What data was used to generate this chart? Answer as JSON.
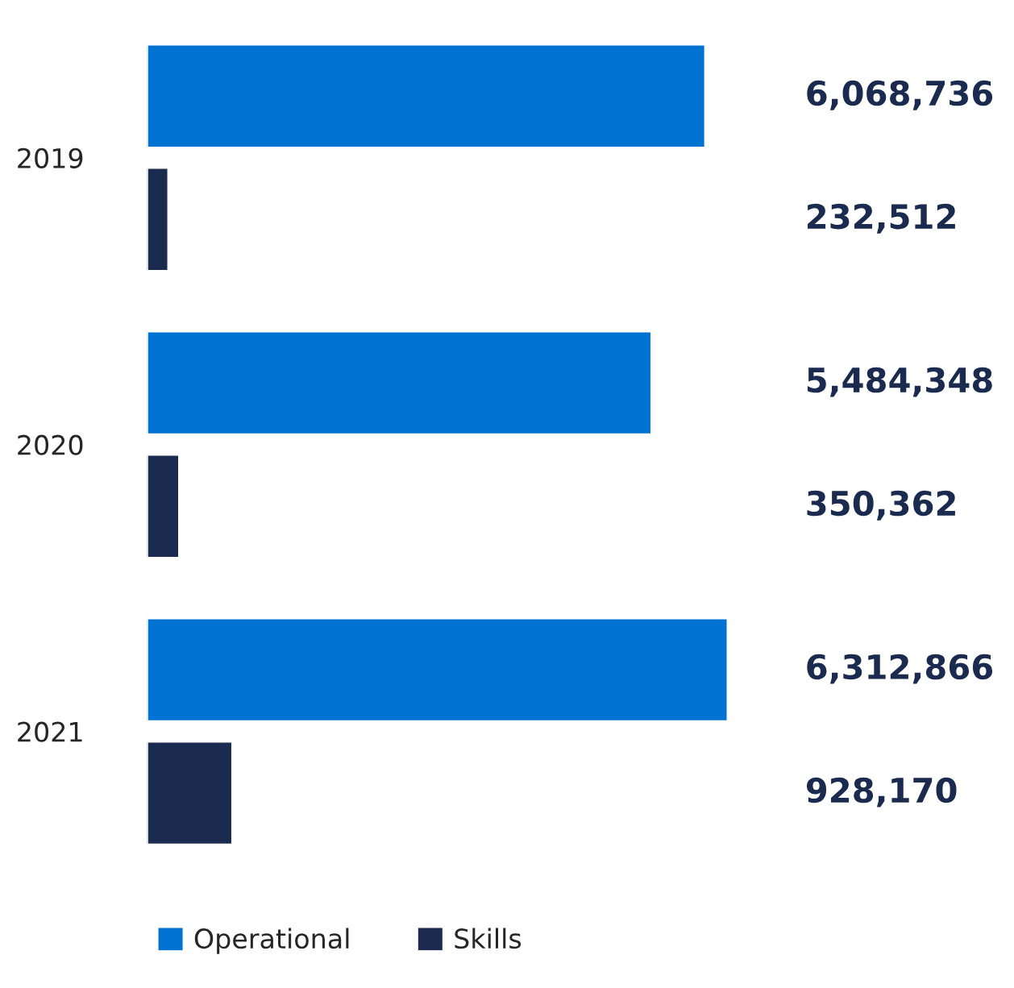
{
  "chart_data": {
    "type": "bar",
    "orientation": "horizontal",
    "categories": [
      "2019",
      "2020",
      "2021"
    ],
    "series": [
      {
        "name": "Operational",
        "color": "#0072d1",
        "values": [
          6068736,
          5484348,
          6312866
        ],
        "value_labels": [
          "6,068,736",
          "5,484,348",
          "6,312,866"
        ]
      },
      {
        "name": "Skills",
        "color": "#1b2b4f",
        "values": [
          232512,
          350362,
          928170
        ],
        "value_labels": [
          "232,512",
          "350,362",
          "928,170"
        ]
      }
    ],
    "legend": "bottom left",
    "grid": false
  }
}
